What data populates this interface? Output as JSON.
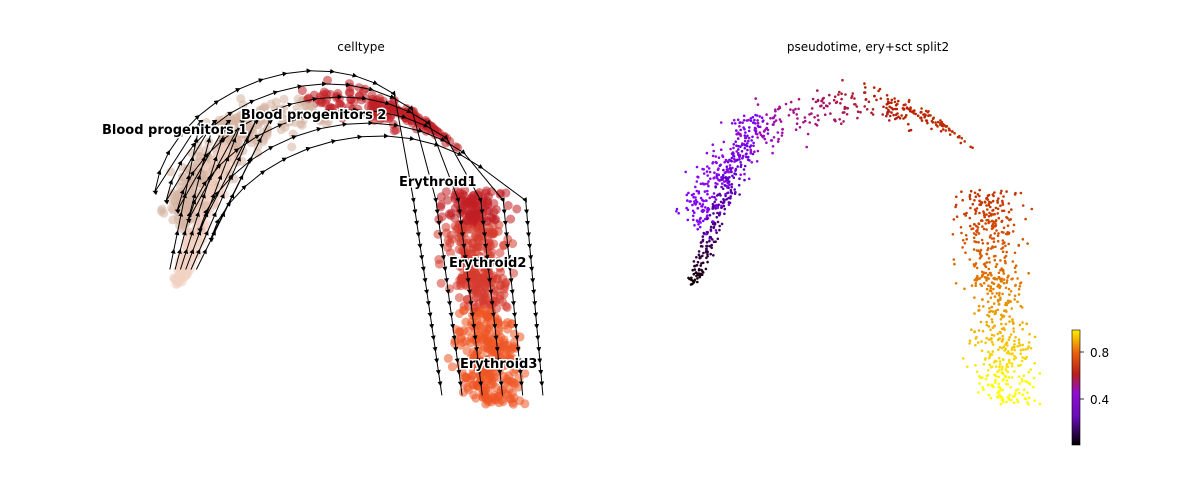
{
  "chart_data": [
    {
      "type": "scatter",
      "title": "celltype",
      "legend": "on data",
      "streamlines": true,
      "categories": [
        "Blood progenitors 1",
        "Blood progenitors 2",
        "Erythroid1",
        "Erythroid2",
        "Erythroid3"
      ],
      "colors": {
        "Blood progenitors 1": "#f2d2c2",
        "Blood progenitors 2": "#d6b4a2",
        "Erythroid1": "#c11f24",
        "Erythroid2": "#d63a2e",
        "Erythroid3": "#ee5525"
      }
    },
    {
      "type": "scatter",
      "title": "pseudotime, ery+sct split2",
      "colormap": "gnuplot",
      "colorbar": {
        "range": [
          0,
          1
        ],
        "ticks": [
          0.4,
          0.8
        ],
        "tick_labels": [
          "0.4",
          "0.8"
        ]
      }
    }
  ]
}
